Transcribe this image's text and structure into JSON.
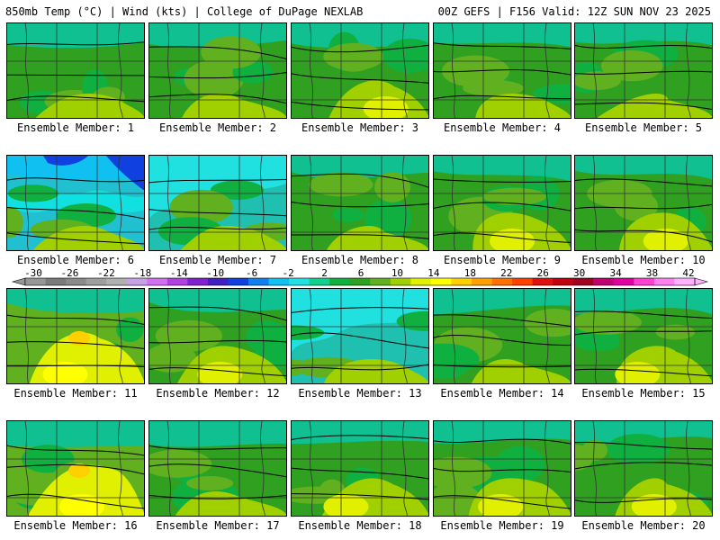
{
  "header": {
    "left": "850mb Temp (°C) | Wind (kts) | College of DuPage NEXLAB",
    "right": "00Z GEFS | F156 Valid: 12Z SUN NOV 23 2025"
  },
  "colorbar": {
    "tick_labels": [
      "-30",
      "-26",
      "-22",
      "-18",
      "-14",
      "-10",
      "-6",
      "-2",
      "2",
      "6",
      "10",
      "14",
      "18",
      "22",
      "26",
      "30",
      "34",
      "38",
      "42"
    ],
    "colors": [
      "#969696",
      "#7a7a7a",
      "#8a8a8a",
      "#9e9e9e",
      "#b0b0b0",
      "#c8a0e6",
      "#d070f0",
      "#b040e0",
      "#8020d0",
      "#4020c0",
      "#1040e0",
      "#1080f0",
      "#10c0f0",
      "#20e0e0",
      "#10d090",
      "#10b040",
      "#30a020",
      "#60b020",
      "#a0d000",
      "#e0f000",
      "#ffff00",
      "#ffd000",
      "#ffa000",
      "#ff7000",
      "#ff4000",
      "#e01010",
      "#c00010",
      "#a00020",
      "#c00070",
      "#e000a0",
      "#ff40d0",
      "#ff80f0",
      "#ffb0ff"
    ]
  },
  "panels": [
    {
      "label": "Ensemble Member: 1"
    },
    {
      "label": "Ensemble Member: 2"
    },
    {
      "label": "Ensemble Member: 3"
    },
    {
      "label": "Ensemble Member: 4"
    },
    {
      "label": "Ensemble Member: 5"
    },
    {
      "label": "Ensemble Member: 6"
    },
    {
      "label": "Ensemble Member: 7"
    },
    {
      "label": "Ensemble Member: 8"
    },
    {
      "label": "Ensemble Member: 9"
    },
    {
      "label": "Ensemble Member: 10"
    },
    {
      "label": "Ensemble Member: 11"
    },
    {
      "label": "Ensemble Member: 12"
    },
    {
      "label": "Ensemble Member: 13"
    },
    {
      "label": "Ensemble Member: 14"
    },
    {
      "label": "Ensemble Member: 15"
    },
    {
      "label": "Ensemble Member: 16"
    },
    {
      "label": "Ensemble Member: 17"
    },
    {
      "label": "Ensemble Member: 18"
    },
    {
      "label": "Ensemble Member: 19"
    },
    {
      "label": "Ensemble Member: 20"
    }
  ]
}
